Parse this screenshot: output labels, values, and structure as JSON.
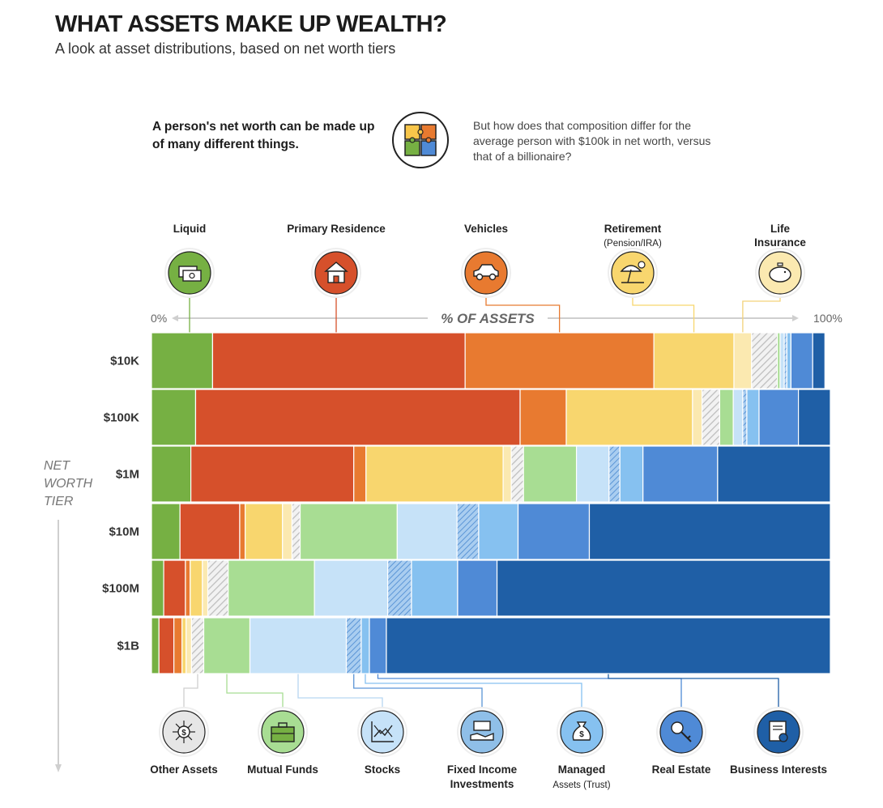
{
  "title": "WHAT ASSETS MAKE UP WEALTH?",
  "subtitle": "A look at asset distributions, based on net worth tiers",
  "intro": {
    "left": "A person's net worth can be made up of many different things.",
    "right": "But how does that composition differ for the average person with $100k in net worth, versus that of a billionaire?"
  },
  "axis": {
    "start_label": "0%",
    "end_label": "100%",
    "title": "% OF ASSETS",
    "tier_title": [
      "NET",
      "WORTH",
      "TIER"
    ]
  },
  "chart_data": {
    "type": "bar",
    "orientation": "horizontal",
    "stacked": true,
    "categories": [
      "$10K",
      "$100K",
      "$1M",
      "$10M",
      "$100M",
      "$1B"
    ],
    "xlim": [
      0,
      100
    ],
    "series": [
      {
        "name": "Liquid",
        "color": "#76b043",
        "values": [
          9.0,
          6.5,
          5.8,
          4.2,
          1.8,
          1.1
        ]
      },
      {
        "name": "Primary Residence",
        "color": "#d6502b",
        "values": [
          37.2,
          47.8,
          24.0,
          8.8,
          3.2,
          2.2
        ]
      },
      {
        "name": "Vehicles",
        "color": "#e87a30",
        "values": [
          27.8,
          6.8,
          1.8,
          0.8,
          0.7,
          1.2
        ]
      },
      {
        "name": "Retirement (Pension/IRA)",
        "color": "#f8d66e",
        "values": [
          11.8,
          18.6,
          20.2,
          5.5,
          1.8,
          0.6
        ]
      },
      {
        "name": "Life Insurance",
        "color": "#fbe9b0",
        "values": [
          2.6,
          1.4,
          1.2,
          1.4,
          0.8,
          0.8
        ]
      },
      {
        "name": "Other Assets",
        "color": "#d9d9d9",
        "values": [
          3.8,
          2.6,
          1.8,
          1.2,
          3.0,
          1.8
        ]
      },
      {
        "name": "Mutual Funds",
        "color": "#a8dd93",
        "values": [
          0.4,
          2.0,
          7.8,
          14.3,
          12.7,
          6.8
        ]
      },
      {
        "name": "Stocks",
        "color": "#c6e2f8",
        "values": [
          0.6,
          1.4,
          4.8,
          8.8,
          10.8,
          14.2
        ]
      },
      {
        "name": "Fixed Income Investments",
        "color": "#8fbfe8",
        "values": [
          0.4,
          0.6,
          1.6,
          3.2,
          3.5,
          2.2
        ]
      },
      {
        "name": "Managed Assets (Trust)",
        "color": "#86c1f0",
        "values": [
          0.6,
          1.8,
          3.4,
          5.8,
          6.8,
          1.2
        ]
      },
      {
        "name": "Real Estate",
        "color": "#4f8ad6",
        "values": [
          3.2,
          5.8,
          11.0,
          10.5,
          5.8,
          2.5
        ]
      },
      {
        "name": "Business Interests",
        "color": "#1f5fa6",
        "values": [
          1.8,
          4.7,
          16.6,
          35.5,
          49.1,
          65.4
        ]
      }
    ]
  },
  "top_categories": [
    {
      "label": "Liquid",
      "sub": "",
      "icon": "cash-icon",
      "color": "#76b043"
    },
    {
      "label": "Primary Residence",
      "sub": "",
      "icon": "house-icon",
      "color": "#d6502b"
    },
    {
      "label": "Vehicles",
      "sub": "",
      "icon": "car-icon",
      "color": "#e87a30"
    },
    {
      "label": "Retirement",
      "sub": "(Pension/IRA)",
      "icon": "beach-umbrella-icon",
      "color": "#f8d66e"
    },
    {
      "label": "Life",
      "sub": "Insurance",
      "icon": "piggy-bank-icon",
      "color": "#fbe9b0"
    }
  ],
  "bottom_categories": [
    {
      "label": "Other Assets",
      "sub": "",
      "icon": "network-dollar-icon",
      "color": "#e6e6e6"
    },
    {
      "label": "Mutual Funds",
      "sub": "",
      "icon": "briefcase-icon",
      "color": "#a8dd93"
    },
    {
      "label": "Stocks",
      "sub": "",
      "icon": "stock-chart-icon",
      "color": "#c6e2f8"
    },
    {
      "label": "Fixed Income",
      "sub": "Investments",
      "icon": "hand-money-icon",
      "color": "#8fbfe8"
    },
    {
      "label": "Managed",
      "sub": "Assets (Trust)",
      "icon": "money-bag-icon",
      "color": "#86c1f0"
    },
    {
      "label": "Real Estate",
      "sub": "",
      "icon": "keys-icon",
      "color": "#4f8ad6"
    },
    {
      "label": "Business Interests",
      "sub": "",
      "icon": "certificate-icon",
      "color": "#1f5fa6"
    }
  ]
}
